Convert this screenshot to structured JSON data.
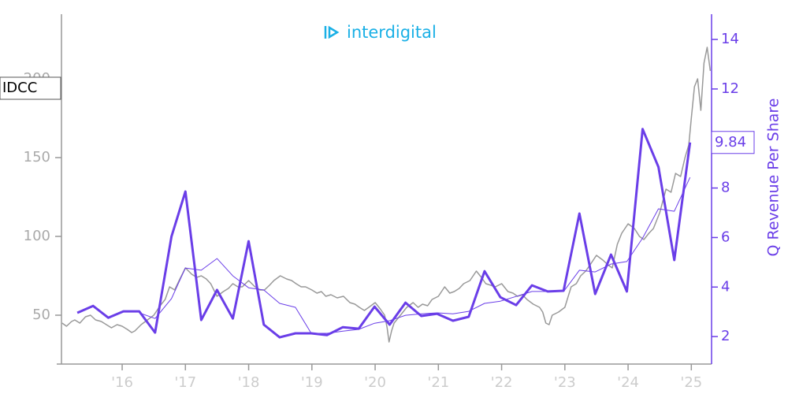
{
  "chart_data": {
    "type": "line",
    "logo": "interdigital",
    "y2_label": "Q Revenue Per Share",
    "xlim": [
      2015.04,
      2025.32
    ],
    "xticks": [
      {
        "value": 2016,
        "label": "'16"
      },
      {
        "value": 2017,
        "label": "'17"
      },
      {
        "value": 2018,
        "label": "'18"
      },
      {
        "value": 2019,
        "label": "'19"
      },
      {
        "value": 2020,
        "label": "'20"
      },
      {
        "value": 2021,
        "label": "'21"
      },
      {
        "value": 2022,
        "label": "'22"
      },
      {
        "value": 2023,
        "label": "'23"
      },
      {
        "value": 2024,
        "label": "'24"
      },
      {
        "value": 2025,
        "label": "'25"
      }
    ],
    "ylim": [
      19,
      241
    ],
    "yticks": [
      50,
      100,
      150,
      200
    ],
    "y2lim": [
      0.89,
      15.02
    ],
    "y2ticks": [
      2,
      4,
      6,
      8,
      10,
      12,
      14
    ],
    "series": [
      {
        "name": "IDCC",
        "color": "#999999",
        "axis": "y",
        "width": 1.5,
        "x": [
          2015.05,
          2015.12,
          2015.2,
          2015.25,
          2015.33,
          2015.42,
          2015.5,
          2015.58,
          2015.67,
          2015.75,
          2015.83,
          2015.92,
          2016.0,
          2016.08,
          2016.15,
          2016.2,
          2016.3,
          2016.4,
          2016.5,
          2016.6,
          2016.68,
          2016.75,
          2016.83,
          2016.9,
          2017.0,
          2017.05,
          2017.1,
          2017.18,
          2017.25,
          2017.33,
          2017.4,
          2017.5,
          2017.6,
          2017.68,
          2017.75,
          2017.83,
          2017.9,
          2018.0,
          2018.1,
          2018.18,
          2018.25,
          2018.33,
          2018.4,
          2018.5,
          2018.6,
          2018.68,
          2018.75,
          2018.83,
          2018.9,
          2019.0,
          2019.08,
          2019.15,
          2019.22,
          2019.3,
          2019.4,
          2019.5,
          2019.6,
          2019.68,
          2019.75,
          2019.83,
          2019.9,
          2020.0,
          2020.08,
          2020.15,
          2020.19,
          2020.22,
          2020.26,
          2020.3,
          2020.4,
          2020.5,
          2020.6,
          2020.68,
          2020.75,
          2020.83,
          2020.9,
          2021.0,
          2021.1,
          2021.18,
          2021.25,
          2021.33,
          2021.4,
          2021.5,
          2021.6,
          2021.68,
          2021.75,
          2021.83,
          2021.9,
          2022.0,
          2022.1,
          2022.18,
          2022.25,
          2022.33,
          2022.4,
          2022.5,
          2022.6,
          2022.65,
          2022.7,
          2022.75,
          2022.8,
          2022.9,
          2023.0,
          2023.1,
          2023.18,
          2023.25,
          2023.33,
          2023.4,
          2023.5,
          2023.6,
          2023.68,
          2023.75,
          2023.83,
          2023.9,
          2024.0,
          2024.1,
          2024.18,
          2024.25,
          2024.33,
          2024.4,
          2024.5,
          2024.6,
          2024.68,
          2024.75,
          2024.83,
          2024.9,
          2024.96,
          2025.0,
          2025.05,
          2025.1,
          2025.15,
          2025.2,
          2025.25,
          2025.3
        ],
        "values": [
          45,
          43,
          46,
          47,
          45,
          49,
          50,
          47,
          46,
          44,
          42,
          44,
          43,
          41,
          39,
          40,
          44,
          47,
          50,
          56,
          60,
          68,
          66,
          72,
          80,
          78,
          76,
          74,
          75,
          73,
          70,
          62,
          65,
          67,
          70,
          68,
          68,
          72,
          68,
          66,
          66,
          69,
          72,
          75,
          73,
          72,
          70,
          68,
          68,
          66,
          64,
          65,
          62,
          63,
          61,
          62,
          58,
          57,
          55,
          53,
          55,
          58,
          54,
          50,
          42,
          33,
          40,
          45,
          50,
          55,
          58,
          55,
          57,
          56,
          60,
          62,
          68,
          64,
          65,
          67,
          70,
          72,
          78,
          74,
          70,
          69,
          68,
          70,
          65,
          64,
          62,
          63,
          60,
          57,
          55,
          52,
          45,
          44,
          50,
          52,
          55,
          68,
          70,
          75,
          78,
          82,
          88,
          85,
          82,
          80,
          95,
          102,
          108,
          105,
          100,
          98,
          102,
          105,
          115,
          130,
          128,
          140,
          138,
          150,
          158,
          175,
          195,
          200,
          180,
          210,
          220,
          205
        ]
      },
      {
        "color": "#6a3ee8",
        "axis": "y2",
        "width": 3,
        "x": [
          2015.29,
          2015.54,
          2015.78,
          2016.02,
          2016.27,
          2016.52,
          2016.78,
          2017.0,
          2017.25,
          2017.5,
          2017.75,
          2018.0,
          2018.24,
          2018.49,
          2018.74,
          2018.99,
          2019.24,
          2019.49,
          2019.74,
          2019.99,
          2020.23,
          2020.48,
          2020.73,
          2020.98,
          2021.23,
          2021.48,
          2021.73,
          2021.98,
          2022.23,
          2022.48,
          2022.73,
          2022.98,
          2023.23,
          2023.48,
          2023.73,
          2023.98,
          2024.23,
          2024.48,
          2024.73,
          2024.98
        ],
        "values": [
          2.96,
          3.24,
          2.76,
          3.02,
          3.02,
          2.16,
          6.04,
          7.86,
          2.67,
          3.88,
          2.73,
          5.85,
          2.48,
          1.97,
          2.13,
          2.13,
          2.06,
          2.38,
          2.32,
          3.21,
          2.48,
          3.37,
          2.83,
          2.92,
          2.64,
          2.8,
          4.64,
          3.59,
          3.27,
          4.07,
          3.82,
          3.85,
          6.97,
          3.72,
          5.31,
          3.82,
          10.38,
          8.85,
          5.09,
          9.84
        ]
      },
      {
        "color": "#6a3ee8",
        "axis": "y2",
        "width": 1,
        "x": [
          2016.27,
          2016.52,
          2016.78,
          2017.0,
          2017.25,
          2017.5,
          2017.75,
          2018.0,
          2018.24,
          2018.49,
          2018.74,
          2018.99,
          2019.24,
          2019.49,
          2019.74,
          2019.99,
          2020.23,
          2020.48,
          2020.73,
          2020.98,
          2021.23,
          2021.48,
          2021.73,
          2021.98,
          2022.23,
          2022.48,
          2022.73,
          2022.98,
          2023.23,
          2023.48,
          2023.73,
          2023.98,
          2024.23,
          2024.48,
          2024.73,
          2024.98
        ],
        "values": [
          2.96,
          2.73,
          3.53,
          4.77,
          4.68,
          5.15,
          4.45,
          3.97,
          3.88,
          3.34,
          3.18,
          2.13,
          2.13,
          2.22,
          2.29,
          2.54,
          2.64,
          2.86,
          2.92,
          2.96,
          2.92,
          3.02,
          3.34,
          3.43,
          3.62,
          3.82,
          3.82,
          3.82,
          4.68,
          4.61,
          4.93,
          5.03,
          5.98,
          7.16,
          7.06,
          8.43
        ]
      }
    ]
  }
}
